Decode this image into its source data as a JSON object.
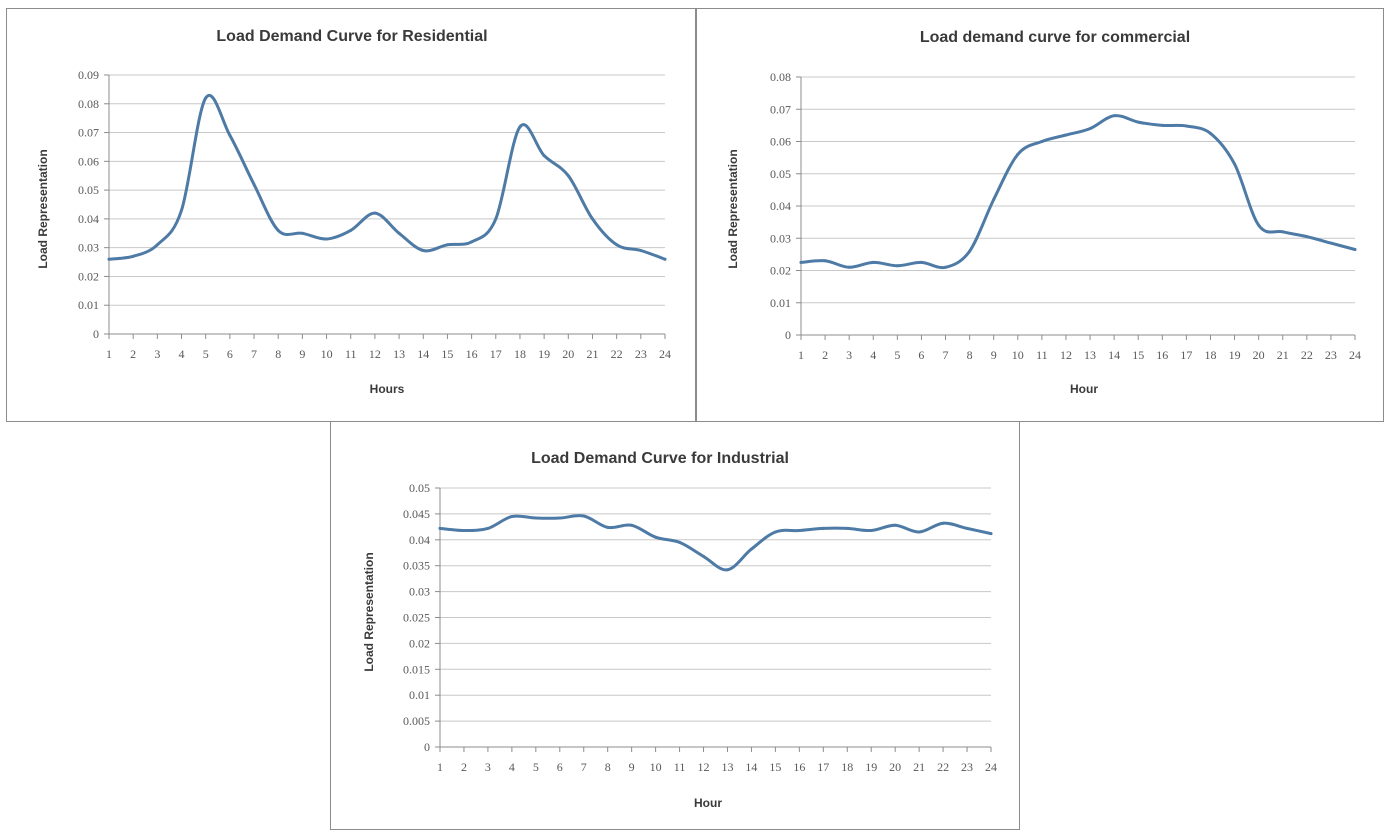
{
  "chart_data": [
    {
      "type": "line",
      "title": "Load Demand Curve for Residential",
      "xlabel": "Hours",
      "ylabel": "Load Representation",
      "ylim": [
        0,
        0.09
      ],
      "yticks": [
        "0",
        "0.01",
        "0.02",
        "0.03",
        "0.04",
        "0.05",
        "0.06",
        "0.07",
        "0.08",
        "0.09"
      ],
      "categories": [
        "1",
        "2",
        "3",
        "4",
        "5",
        "6",
        "7",
        "8",
        "9",
        "10",
        "11",
        "12",
        "13",
        "14",
        "15",
        "16",
        "17",
        "18",
        "19",
        "20",
        "21",
        "22",
        "23",
        "24"
      ],
      "grid": true,
      "series": [
        {
          "values": [
            0.026,
            0.027,
            0.031,
            0.043,
            0.082,
            0.069,
            0.052,
            0.036,
            0.035,
            0.033,
            0.036,
            0.042,
            0.035,
            0.029,
            0.031,
            0.032,
            0.04,
            0.072,
            0.062,
            0.055,
            0.04,
            0.031,
            0.029,
            0.026
          ]
        }
      ]
    },
    {
      "type": "line",
      "title": "Load demand curve for commercial",
      "xlabel": "Hour",
      "ylabel": "Load Representation",
      "ylim": [
        0,
        0.08
      ],
      "yticks": [
        "0",
        "0.01",
        "0.02",
        "0.03",
        "0.04",
        "0.05",
        "0.06",
        "0.07",
        "0.08"
      ],
      "categories": [
        "1",
        "2",
        "3",
        "4",
        "5",
        "6",
        "7",
        "8",
        "9",
        "10",
        "11",
        "12",
        "13",
        "14",
        "15",
        "16",
        "17",
        "18",
        "19",
        "20",
        "21",
        "22",
        "23",
        "24"
      ],
      "grid": true,
      "series": [
        {
          "values": [
            0.0225,
            0.023,
            0.021,
            0.0225,
            0.0215,
            0.0225,
            0.021,
            0.026,
            0.042,
            0.056,
            0.06,
            0.062,
            0.064,
            0.068,
            0.066,
            0.065,
            0.0648,
            0.0625,
            0.053,
            0.034,
            0.032,
            0.0305,
            0.0285,
            0.0265
          ]
        }
      ]
    },
    {
      "type": "line",
      "title": "Load Demand Curve for Industrial",
      "xlabel": "Hour",
      "ylabel": "Load Representation",
      "ylim": [
        0,
        0.05
      ],
      "yticks": [
        "0",
        "0.005",
        "0.01",
        "0.015",
        "0.02",
        "0.025",
        "0.03",
        "0.035",
        "0.04",
        "0.045",
        "0.05"
      ],
      "categories": [
        "1",
        "2",
        "3",
        "4",
        "5",
        "6",
        "7",
        "8",
        "9",
        "10",
        "11",
        "12",
        "13",
        "14",
        "15",
        "16",
        "17",
        "18",
        "19",
        "20",
        "21",
        "22",
        "23",
        "24"
      ],
      "grid": true,
      "series": [
        {
          "values": [
            0.0422,
            0.0418,
            0.0422,
            0.0445,
            0.0442,
            0.0442,
            0.0446,
            0.0424,
            0.0428,
            0.0405,
            0.0395,
            0.0368,
            0.0342,
            0.0382,
            0.0415,
            0.0418,
            0.0422,
            0.0422,
            0.0418,
            0.0428,
            0.0415,
            0.0432,
            0.0422,
            0.0412
          ]
        }
      ]
    }
  ],
  "colors": {
    "series_line": "#4e7aa6",
    "grid": "#c8c8c8",
    "axis": "#8c8c8c",
    "text": "#3a3a3a"
  }
}
